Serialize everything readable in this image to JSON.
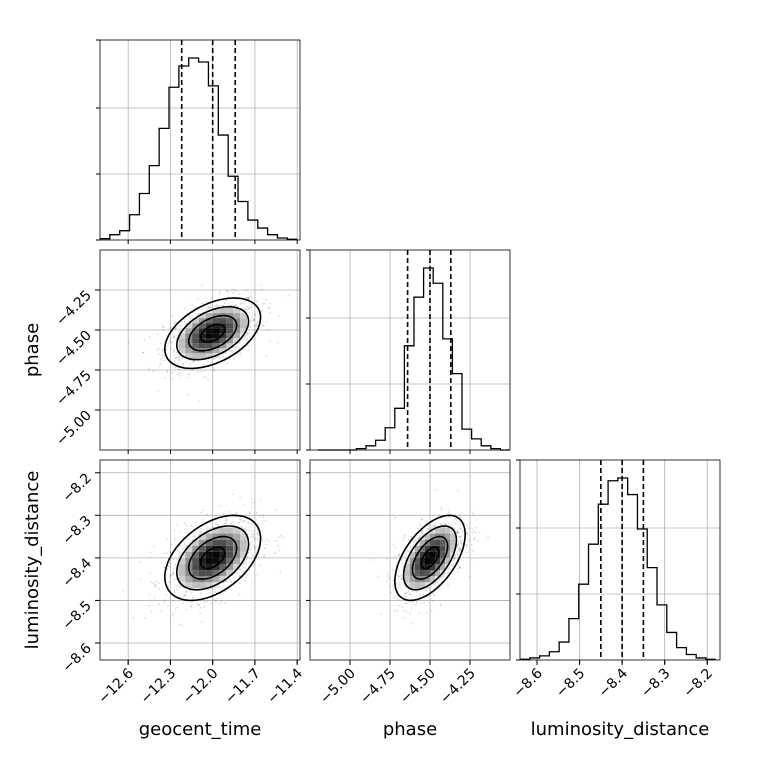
{
  "chart_data": {
    "type": "corner",
    "parameters": [
      "geocent_time",
      "phase",
      "luminosity_distance"
    ],
    "axes": {
      "geocent_time": {
        "label": "geocent_time",
        "range": [
          -12.8,
          -11.38
        ],
        "ticks": [
          -12.6,
          -12.3,
          -12.0,
          -11.7,
          -11.4
        ],
        "tick_labels": [
          "−12.6",
          "−12.3",
          "−12.0",
          "−11.7",
          "−11.4"
        ]
      },
      "phase": {
        "label": "phase",
        "range": [
          -5.25,
          -4.0
        ],
        "ticks": [
          -5.0,
          -4.75,
          -4.5,
          -4.25
        ],
        "tick_labels": [
          "−5.00",
          "−4.75",
          "−4.50",
          "−4.25"
        ]
      },
      "luminosity_distance": {
        "label": "luminosity_distance",
        "range": [
          -8.64,
          -8.17
        ],
        "ticks": [
          -8.6,
          -8.5,
          -8.4,
          -8.3,
          -8.2
        ],
        "tick_labels": [
          "−8.6",
          "−8.5",
          "−8.4",
          "−8.3",
          "−8.2"
        ]
      }
    },
    "marginals": [
      {
        "parameter": "geocent_time",
        "quantiles": [
          -12.22,
          -12.0,
          -11.84
        ],
        "median": -12.0,
        "bin_edges": [
          -12.8,
          -12.73,
          -12.66,
          -12.59,
          -12.52,
          -12.45,
          -12.38,
          -12.31,
          -12.24,
          -12.17,
          -12.1,
          -12.03,
          -11.96,
          -11.89,
          -11.82,
          -11.75,
          -11.68,
          -11.61,
          -11.54,
          -11.47,
          -11.4
        ],
        "counts": [
          2,
          8,
          14,
          38,
          70,
          112,
          168,
          230,
          262,
          274,
          268,
          232,
          158,
          96,
          58,
          30,
          18,
          8,
          3,
          1
        ]
      },
      {
        "parameter": "phase",
        "quantiles": [
          -4.64,
          -4.5,
          -4.37
        ],
        "median": -4.5,
        "bin_edges": [
          -5.2,
          -5.14,
          -5.08,
          -5.02,
          -4.96,
          -4.9,
          -4.84,
          -4.78,
          -4.72,
          -4.66,
          -4.6,
          -4.54,
          -4.48,
          -4.42,
          -4.36,
          -4.3,
          -4.24,
          -4.18,
          -4.12,
          -4.06,
          -4.0
        ],
        "counts": [
          0,
          0,
          0,
          0,
          2,
          6,
          14,
          32,
          60,
          150,
          220,
          262,
          240,
          160,
          110,
          30,
          16,
          6,
          2,
          0
        ]
      },
      {
        "parameter": "luminosity_distance",
        "quantiles": [
          -8.45,
          -8.4,
          -8.35
        ],
        "median": -8.4,
        "bin_edges": [
          -8.64,
          -8.617,
          -8.594,
          -8.571,
          -8.548,
          -8.525,
          -8.502,
          -8.479,
          -8.456,
          -8.433,
          -8.41,
          -8.387,
          -8.364,
          -8.341,
          -8.318,
          -8.295,
          -8.272,
          -8.249,
          -8.226,
          -8.203,
          -8.18
        ],
        "counts": [
          1,
          3,
          6,
          12,
          26,
          60,
          110,
          168,
          226,
          260,
          264,
          240,
          190,
          134,
          80,
          40,
          18,
          8,
          3,
          1
        ]
      }
    ],
    "joint": [
      {
        "x": "geocent_time",
        "y": "phase",
        "center": [
          -12.0,
          -4.52
        ],
        "sd": [
          0.17,
          0.11
        ],
        "correlation": 0.45,
        "contour_levels_sigma": [
          0.5,
          1.0,
          1.5,
          2.0
        ]
      },
      {
        "x": "geocent_time",
        "y": "luminosity_distance",
        "center": [
          -12.0,
          -8.4
        ],
        "sd": [
          0.17,
          0.05
        ],
        "correlation": 0.45,
        "contour_levels_sigma": [
          0.5,
          1.0,
          1.5,
          2.0
        ]
      },
      {
        "x": "phase",
        "y": "luminosity_distance",
        "center": [
          -4.5,
          -8.4
        ],
        "sd": [
          0.11,
          0.05
        ],
        "correlation": 0.55,
        "contour_levels_sigma": [
          0.5,
          1.0,
          1.5,
          2.0
        ]
      }
    ],
    "grid": true
  }
}
